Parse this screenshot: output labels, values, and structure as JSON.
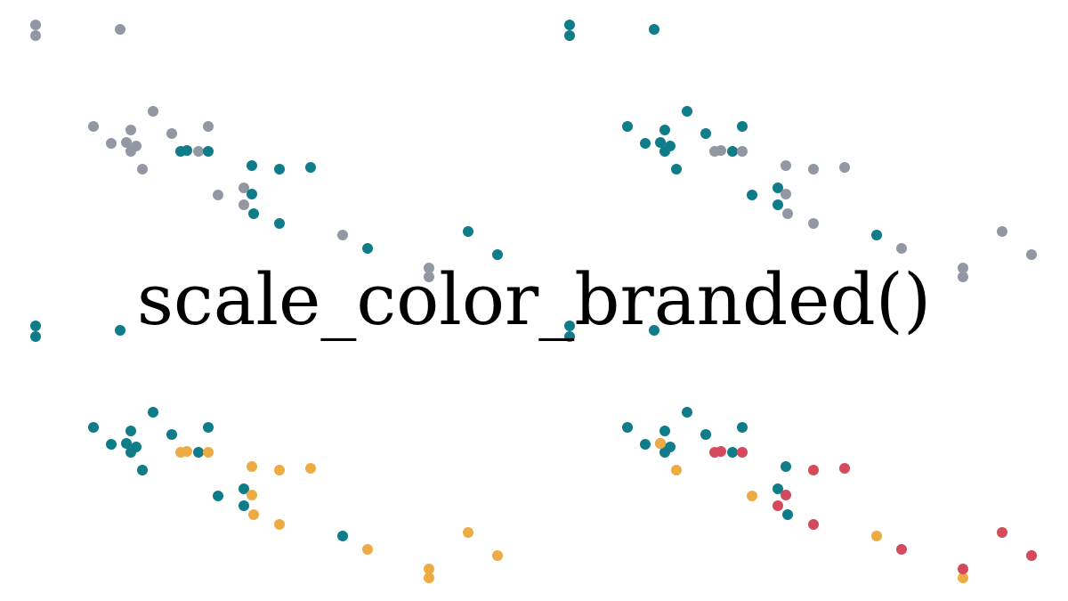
{
  "title": "scale_color_branded()",
  "colors": {
    "background": "#ffffff",
    "title": "#000000",
    "gray": "#9298a3",
    "teal": "#0e7c89",
    "orange": "#ecab43",
    "red": "#d24a5c"
  },
  "chart_data": [
    {
      "type": "scatter",
      "panel": "top-left",
      "series": [
        {
          "name": "",
          "color": "gray",
          "points": [
            [
              0,
              28
            ],
            [
              0,
              40
            ],
            [
              95,
              33
            ],
            [
              65,
              142
            ],
            [
              85,
              161
            ],
            [
              102,
              160
            ],
            [
              107,
              146
            ],
            [
              107,
              170
            ],
            [
              113,
              164
            ],
            [
              120,
              190
            ],
            [
              132,
              125
            ],
            [
              153,
              150
            ],
            [
              183,
              170
            ],
            [
              194,
              142
            ],
            [
              205,
              219
            ],
            [
              234,
              211
            ],
            [
              234,
              230
            ],
            [
              345,
              264
            ],
            [
              442,
              301
            ],
            [
              442,
              311
            ]
          ]
        },
        {
          "name": "",
          "color": "teal",
          "points": [
            [
              163,
              170
            ],
            [
              170,
              169
            ],
            [
              194,
              170
            ],
            [
              243,
              186
            ],
            [
              243,
              218
            ],
            [
              245,
              240
            ],
            [
              274,
              190
            ],
            [
              274,
              251
            ],
            [
              309,
              188
            ],
            [
              373,
              279
            ],
            [
              486,
              260
            ],
            [
              519,
              286
            ]
          ]
        }
      ]
    },
    {
      "type": "scatter",
      "panel": "top-right",
      "series": [
        {
          "name": "",
          "color": "teal",
          "points": [
            [
              0,
              28
            ],
            [
              0,
              40
            ],
            [
              95,
              33
            ],
            [
              65,
              142
            ],
            [
              85,
              161
            ],
            [
              102,
              160
            ],
            [
              107,
              146
            ],
            [
              107,
              170
            ],
            [
              113,
              164
            ],
            [
              120,
              190
            ],
            [
              132,
              125
            ],
            [
              153,
              150
            ],
            [
              183,
              170
            ],
            [
              194,
              142
            ],
            [
              205,
              219
            ],
            [
              234,
              211
            ],
            [
              234,
              230
            ],
            [
              345,
              264
            ]
          ]
        },
        {
          "name": "",
          "color": "gray",
          "points": [
            [
              163,
              170
            ],
            [
              170,
              169
            ],
            [
              194,
              170
            ],
            [
              243,
              186
            ],
            [
              243,
              218
            ],
            [
              245,
              240
            ],
            [
              274,
              190
            ],
            [
              274,
              251
            ],
            [
              309,
              188
            ],
            [
              373,
              279
            ],
            [
              442,
              301
            ],
            [
              442,
              311
            ],
            [
              486,
              260
            ],
            [
              519,
              286
            ]
          ]
        }
      ]
    },
    {
      "type": "scatter",
      "panel": "bottom-left",
      "series": [
        {
          "name": "",
          "color": "teal",
          "points": [
            [
              0,
              28
            ],
            [
              0,
              40
            ],
            [
              95,
              33
            ],
            [
              65,
              142
            ],
            [
              85,
              161
            ],
            [
              102,
              160
            ],
            [
              107,
              146
            ],
            [
              107,
              170
            ],
            [
              113,
              164
            ],
            [
              120,
              190
            ],
            [
              132,
              125
            ],
            [
              153,
              150
            ],
            [
              183,
              170
            ],
            [
              194,
              142
            ],
            [
              205,
              219
            ],
            [
              234,
              211
            ],
            [
              234,
              230
            ],
            [
              345,
              264
            ]
          ]
        },
        {
          "name": "",
          "color": "orange",
          "points": [
            [
              163,
              170
            ],
            [
              170,
              169
            ],
            [
              194,
              170
            ],
            [
              243,
              186
            ],
            [
              243,
              218
            ],
            [
              245,
              240
            ],
            [
              274,
              190
            ],
            [
              274,
              251
            ],
            [
              309,
              188
            ],
            [
              373,
              279
            ],
            [
              442,
              301
            ],
            [
              442,
              311
            ],
            [
              486,
              260
            ],
            [
              519,
              286
            ]
          ]
        }
      ]
    },
    {
      "type": "scatter",
      "panel": "bottom-right",
      "series": [
        {
          "name": "",
          "color": "teal",
          "points": [
            [
              0,
              28
            ],
            [
              0,
              40
            ],
            [
              95,
              33
            ],
            [
              65,
              142
            ],
            [
              85,
              161
            ],
            [
              102,
              160
            ],
            [
              107,
              146
            ],
            [
              107,
              170
            ],
            [
              113,
              164
            ],
            [
              132,
              125
            ],
            [
              153,
              150
            ],
            [
              183,
              170
            ],
            [
              194,
              142
            ],
            [
              243,
              186
            ],
            [
              234,
              211
            ],
            [
              245,
              240
            ]
          ]
        },
        {
          "name": "",
          "color": "orange",
          "points": [
            [
              102,
              160
            ],
            [
              120,
              190
            ],
            [
              205,
              219
            ],
            [
              345,
              264
            ],
            [
              442,
              311
            ]
          ]
        },
        {
          "name": "",
          "color": "red",
          "points": [
            [
              163,
              170
            ],
            [
              170,
              169
            ],
            [
              194,
              170
            ],
            [
              243,
              218
            ],
            [
              234,
              230
            ],
            [
              274,
              190
            ],
            [
              274,
              251
            ],
            [
              309,
              188
            ],
            [
              373,
              279
            ],
            [
              442,
              301
            ],
            [
              486,
              260
            ],
            [
              519,
              286
            ]
          ]
        }
      ]
    }
  ]
}
